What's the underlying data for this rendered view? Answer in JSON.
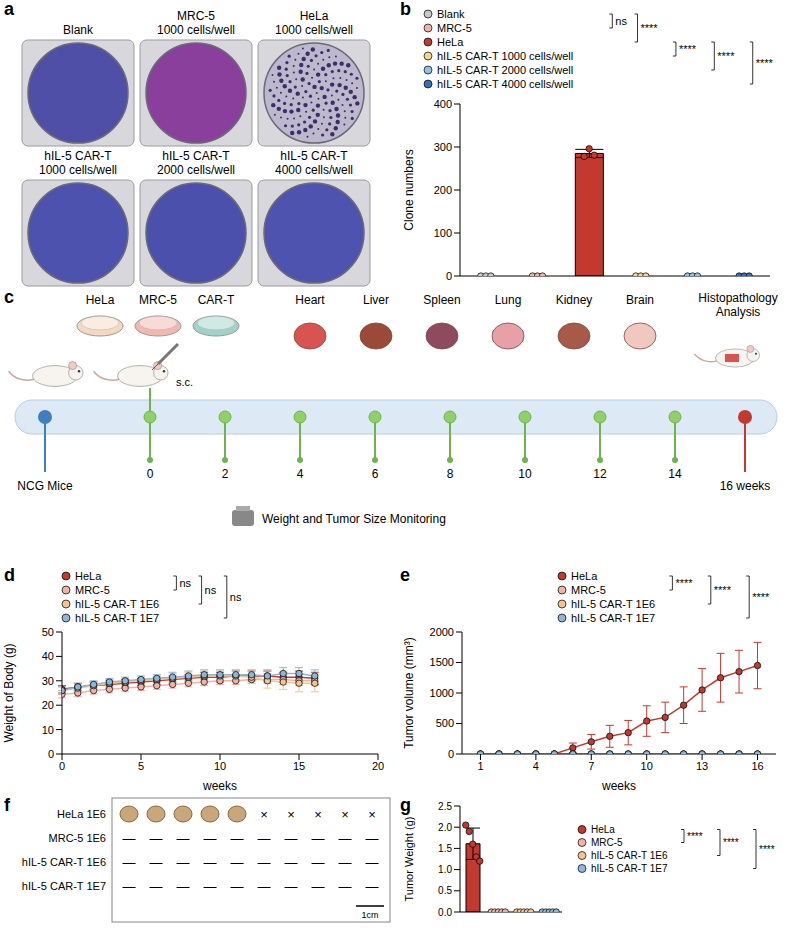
{
  "panel_a": {
    "label": "a",
    "wells": [
      {
        "name": "Blank",
        "color": "#4f4fa8"
      },
      {
        "name": "MRC-5",
        "density": "1000 cells/well",
        "color": "#8a3f9c"
      },
      {
        "name": "HeLa",
        "density": "1000 cells/well",
        "color": "#bdb8cc",
        "colonies": true
      },
      {
        "name": "hIL-5 CAR-T",
        "density": "1000 cells/well",
        "color": "#4c52ad"
      },
      {
        "name": "hIL-5 CAR-T",
        "density": "2000 cells/well",
        "color": "#4a50ab"
      },
      {
        "name": "hIL-5 CAR-T",
        "density": "4000 cells/well",
        "color": "#4d53ae"
      }
    ]
  },
  "chart_data": [
    {
      "type": "bar",
      "label": "b",
      "ylabel": "Clone numbers",
      "ylim": [
        0,
        400
      ],
      "yticks": [
        0,
        100,
        200,
        300,
        400
      ],
      "tick_labels": "y",
      "marker": "circle",
      "legend": "top",
      "series": [
        {
          "name": "Blank",
          "color": "#c8c8c8",
          "values": [
            0,
            0,
            0
          ],
          "mean": 0,
          "sd": 0
        },
        {
          "name": "MRC-5",
          "color": "#f2b2a8",
          "values": [
            0,
            0,
            0
          ],
          "mean": 0,
          "sd": 0
        },
        {
          "name": "HeLa",
          "color": "#c23a2f",
          "values": [
            278,
            296,
            281
          ],
          "mean": 285,
          "sd": 9.5
        },
        {
          "name": "hIL-5 CAR-T 1000 cells/well",
          "color": "#f6d48c",
          "values": [
            0,
            0,
            0
          ],
          "mean": 0,
          "sd": 0
        },
        {
          "name": "hIL-5 CAR-T 2000 cells/well",
          "color": "#92c3e6",
          "values": [
            0,
            0,
            0
          ],
          "mean": 0,
          "sd": 0
        },
        {
          "name": "hIL-5 CAR-T 4000 cells/well",
          "color": "#2f74b5",
          "values": [
            0,
            0,
            0
          ],
          "mean": 0,
          "sd": 0
        }
      ],
      "annotations": [
        {
          "text": "ns",
          "between": [
            "Blank",
            "MRC-5"
          ]
        },
        {
          "text": "****",
          "between": [
            "Blank",
            "HeLa"
          ]
        },
        {
          "text": "****",
          "between": [
            "HeLa",
            "hIL-5 CAR-T 1000 cells/well"
          ]
        },
        {
          "text": "****",
          "between": [
            "HeLa",
            "hIL-5 CAR-T 2000 cells/well"
          ]
        },
        {
          "text": "****",
          "between": [
            "HeLa",
            "hIL-5 CAR-T 4000 cells/well"
          ]
        }
      ]
    },
    {
      "type": "line",
      "label": "d",
      "xlabel": "weeks",
      "ylabel": "Weight of Body (g)",
      "x": [
        0,
        1,
        2,
        3,
        4,
        5,
        6,
        7,
        8,
        9,
        10,
        11,
        12,
        13,
        14,
        15,
        16
      ],
      "xlim": [
        0,
        20
      ],
      "xticks": [
        0,
        5,
        10,
        15,
        20
      ],
      "ylim": [
        0,
        50
      ],
      "yticks": [
        0,
        10,
        20,
        30,
        40,
        50
      ],
      "marker": "circle",
      "legend": "top",
      "series": [
        {
          "name": "HeLa",
          "color": "#c23a2f",
          "values": [
            26.5,
            27.5,
            28,
            28.5,
            29,
            29.5,
            30,
            30.5,
            31,
            31.5,
            31.5,
            32,
            32,
            32,
            31.5,
            31.5,
            31
          ],
          "errors": [
            1.5,
            1.5,
            1.5,
            1.5,
            1.5,
            1.5,
            1.5,
            1.5,
            1.5,
            2,
            2,
            2,
            2,
            2,
            2,
            2.5,
            2.5
          ]
        },
        {
          "name": "MRC-5",
          "color": "#f2b2a8",
          "values": [
            24.5,
            25,
            26,
            26.5,
            27,
            27.5,
            28,
            28.5,
            29,
            29.5,
            30,
            30,
            30.5,
            30.5,
            30.5,
            30,
            30
          ],
          "errors": [
            1.5,
            1.5,
            1.5,
            1.5,
            1.5,
            1.5,
            1.5,
            1.5,
            1.5,
            1.5,
            1.5,
            1.5,
            1.5,
            1.5,
            2,
            2,
            2
          ]
        },
        {
          "name": "hIL-5 CAR-T 1E6",
          "color": "#f7c48e",
          "values": [
            26,
            27,
            28,
            29,
            29.5,
            30,
            30.5,
            31,
            31.5,
            32,
            32,
            32,
            31.5,
            30,
            29.5,
            29,
            29
          ],
          "errors": [
            1.5,
            1.5,
            1.5,
            1.5,
            1.5,
            1.5,
            1.5,
            2,
            2,
            2,
            2,
            2,
            2.5,
            3,
            3,
            3.5,
            3.5
          ]
        },
        {
          "name": "hIL-5 CAR-T 1E7",
          "color": "#8cb6da",
          "values": [
            26,
            27.5,
            28.5,
            29.5,
            30,
            30.5,
            31,
            31.5,
            32,
            32.5,
            32.5,
            32.5,
            32.5,
            32,
            33,
            33,
            32
          ],
          "errors": [
            1.5,
            1.5,
            1.5,
            1.5,
            1.5,
            1.5,
            1.5,
            2,
            2,
            2,
            2,
            2,
            2,
            2.5,
            2.5,
            2.5,
            2.5
          ]
        }
      ],
      "annotations": [
        {
          "text": "ns",
          "between": [
            "HeLa",
            "MRC-5"
          ]
        },
        {
          "text": "ns",
          "between": [
            "HeLa",
            "hIL-5 CAR-T 1E6"
          ]
        },
        {
          "text": "ns",
          "between": [
            "HeLa",
            "hIL-5 CAR-T 1E7"
          ]
        }
      ]
    },
    {
      "type": "line",
      "label": "e",
      "xlabel": "weeks",
      "ylabel": "Tumor volume (mm³)",
      "x": [
        1,
        2,
        3,
        4,
        5,
        6,
        7,
        8,
        9,
        10,
        11,
        12,
        13,
        14,
        15,
        16
      ],
      "xlim": [
        0,
        17
      ],
      "xticks": [
        1,
        4,
        7,
        10,
        13,
        16
      ],
      "ylim": [
        0,
        2000
      ],
      "yticks": [
        0,
        500,
        1000,
        1500,
        2000
      ],
      "marker": "circle",
      "legend": "top",
      "series": [
        {
          "name": "HeLa",
          "color": "#c23a2f",
          "values": [
            0,
            0,
            0,
            0,
            0,
            100,
            200,
            290,
            350,
            540,
            600,
            800,
            1050,
            1250,
            1350,
            1450
          ],
          "errors": [
            0,
            0,
            0,
            0,
            0,
            80,
            120,
            180,
            200,
            250,
            250,
            300,
            350,
            400,
            350,
            380
          ]
        },
        {
          "name": "MRC-5",
          "color": "#f2b2a8",
          "values": [
            0,
            0,
            0,
            0,
            0,
            0,
            0,
            0,
            0,
            0,
            0,
            0,
            0,
            0,
            0,
            0
          ],
          "errors": [
            0,
            0,
            0,
            0,
            0,
            0,
            0,
            0,
            0,
            0,
            0,
            0,
            0,
            0,
            0,
            0
          ]
        },
        {
          "name": "hIL-5 CAR-T 1E6",
          "color": "#f7c48e",
          "values": [
            0,
            0,
            0,
            0,
            0,
            0,
            0,
            0,
            0,
            0,
            0,
            0,
            0,
            0,
            0,
            0
          ],
          "errors": [
            0,
            0,
            0,
            0,
            0,
            0,
            0,
            0,
            0,
            0,
            0,
            0,
            0,
            0,
            0,
            0
          ]
        },
        {
          "name": "hIL-5 CAR-T 1E7",
          "color": "#8cb6da",
          "values": [
            0,
            0,
            0,
            0,
            0,
            0,
            0,
            0,
            0,
            0,
            0,
            0,
            0,
            0,
            0,
            0
          ],
          "errors": [
            0,
            0,
            0,
            0,
            0,
            0,
            0,
            0,
            0,
            0,
            0,
            0,
            0,
            0,
            0,
            0
          ]
        }
      ],
      "annotations": [
        {
          "text": "****",
          "between": [
            "HeLa",
            "MRC-5"
          ]
        },
        {
          "text": "****",
          "between": [
            "HeLa",
            "hIL-5 CAR-T 1E6"
          ]
        },
        {
          "text": "****",
          "between": [
            "HeLa",
            "hIL-5 CAR-T 1E7"
          ]
        }
      ]
    },
    {
      "type": "bar",
      "label": "g",
      "ylabel": "Tumor Weight (g)",
      "ylim": [
        0,
        2.5
      ],
      "yticks": [
        {
          "value": 0,
          "label": "0.0"
        },
        0.5,
        {
          "value": 1,
          "label": "1.0"
        },
        1.5,
        {
          "value": 2,
          "label": "2.0"
        },
        2.5
      ],
      "tick_labels": "y",
      "marker": "circle",
      "legend": "right",
      "series": [
        {
          "name": "HeLa",
          "color": "#c23a2f",
          "values": [
            2.05,
            1.9,
            1.6,
            1.3,
            1.2
          ],
          "mean": 1.61,
          "sd": 0.37
        },
        {
          "name": "MRC-5",
          "color": "#f2b2a8",
          "values": [
            0,
            0,
            0,
            0,
            0
          ],
          "mean": 0,
          "sd": 0
        },
        {
          "name": "hIL-5 CAR-T 1E6",
          "color": "#f7c48e",
          "values": [
            0,
            0,
            0,
            0,
            0
          ],
          "mean": 0,
          "sd": 0
        },
        {
          "name": "hIL-5 CAR-T 1E7",
          "color": "#8cb6da",
          "values": [
            0,
            0,
            0,
            0,
            0
          ],
          "mean": 0,
          "sd": 0
        }
      ],
      "annotations": [
        {
          "text": "****",
          "between": [
            "HeLa",
            "MRC-5"
          ]
        },
        {
          "text": "****",
          "between": [
            "HeLa",
            "hIL-5 CAR-T 1E6"
          ]
        },
        {
          "text": "****",
          "between": [
            "HeLa",
            "hIL-5 CAR-T 1E7"
          ]
        }
      ]
    }
  ],
  "panel_c": {
    "label": "c",
    "cells": [
      "HeLa",
      "MRC-5",
      "CAR-T"
    ],
    "route": "s.c.",
    "organs": [
      "Heart",
      "Liver",
      "Spleen",
      "Lung",
      "Kidney",
      "Brain"
    ],
    "analysis": "Histopathology Analysis",
    "start": "NCG Mice",
    "weeks": [
      0,
      2,
      4,
      6,
      8,
      10,
      12,
      14
    ],
    "end": "16 weeks",
    "monitoring": "Weight and Tumor Size Monitoring"
  },
  "panel_f": {
    "label": "f",
    "rows": [
      {
        "name": "HeLa 1E6",
        "marks": [
          "tumor",
          "tumor",
          "tumor",
          "tumor",
          "tumor",
          "×",
          "×",
          "×",
          "×",
          "×"
        ]
      },
      {
        "name": "MRC-5 1E6",
        "marks": [
          "—",
          "—",
          "—",
          "—",
          "—",
          "—",
          "—",
          "—",
          "—",
          "—"
        ]
      },
      {
        "name": "hIL-5 CAR-T 1E6",
        "marks": [
          "—",
          "—",
          "—",
          "—",
          "—",
          "—",
          "—",
          "—",
          "—",
          "—"
        ]
      },
      {
        "name": "hIL-5 CAR-T 1E7",
        "marks": [
          "—",
          "—",
          "—",
          "—",
          "—",
          "—",
          "—",
          "—",
          "—",
          "—"
        ]
      }
    ],
    "scale": "1cm"
  }
}
